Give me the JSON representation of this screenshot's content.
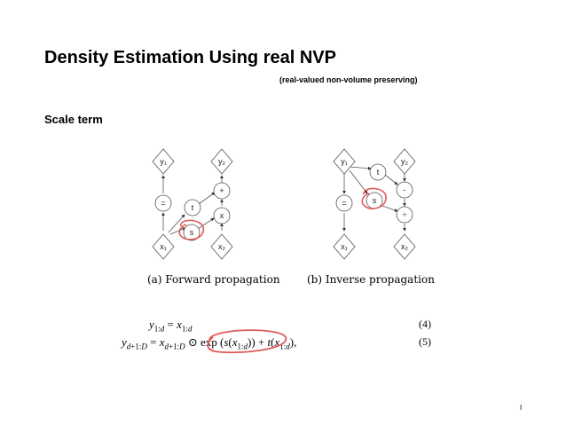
{
  "slide": {
    "title": "Density Estimation Using real NVP",
    "subtitle": "(real-valued non-volume preserving)",
    "section": "Scale term",
    "page_number": "I"
  },
  "figure": {
    "forward": {
      "caption": "(a) Forward propagation",
      "nodes": {
        "y1": "y₁",
        "y2": "y₂",
        "plus": "+",
        "eq": "=",
        "t": "t",
        "x": "x",
        "s": "s",
        "x1": "x₁",
        "x2": "x₂"
      }
    },
    "inverse": {
      "caption": "(b) Inverse propagation",
      "nodes": {
        "y1": "y₁",
        "y2": "y₂",
        "t": "t",
        "minus": "-",
        "eq": "=",
        "s": "s",
        "div": "÷",
        "x1": "x₁",
        "x2": "x₂"
      }
    },
    "highlight_color": "#e05a5a"
  },
  "equations": [
    {
      "lhs": "y1:d",
      "rhs": "x1:d",
      "number": "(4)"
    },
    {
      "lhs": "yd+1:D",
      "rhs": "xd+1:D ⊙ exp (s(x1:d)) + t(x1:d),",
      "number": "(5)"
    }
  ]
}
